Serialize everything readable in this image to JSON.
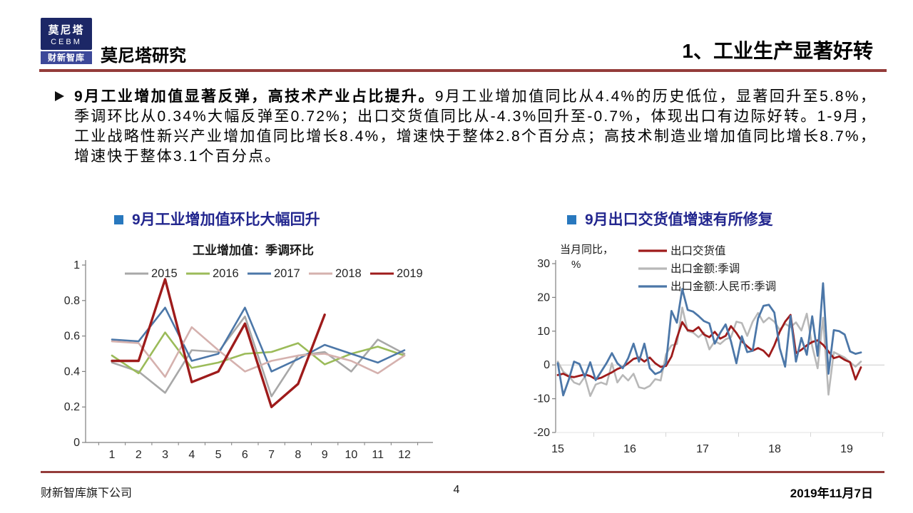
{
  "brand": {
    "logo_line1": "莫尼塔",
    "logo_line2": "CEBM",
    "logo_line3": "财新智库",
    "name": "莫尼塔研究"
  },
  "header": {
    "title": "1、工业生产显著好转",
    "rule_color": "#943c3a"
  },
  "bullet_paragraph": {
    "marker": "➢",
    "lead": "9月工业增加值显著反弹，高技术产业占比提升。",
    "body": "9月工业增加值同比从4.4%的历史低位，显著回升至5.8%，季调环比从0.34%大幅反弹至0.72%；出口交货值同比从-4.3%回升至-0.7%，体现出口有边际好转。1-9月，工业战略性新兴产业增加值同比增长8.4%，增速快于整体2.8个百分点；高技术制造业增加值同比增长8.7%，增速快于整体3.1个百分点。"
  },
  "sections": {
    "left_heading": "9月工业增加值环比大幅回升",
    "right_heading": "9月出口交货值增速有所修复",
    "bullet_color": "#2878be",
    "heading_color": "#23278f"
  },
  "chart_data": [
    {
      "type": "line",
      "title": "工业增加值：季调环比",
      "categories": [
        "1",
        "2",
        "3",
        "4",
        "5",
        "6",
        "7",
        "8",
        "9",
        "10",
        "11",
        "12"
      ],
      "ylim": [
        0,
        1
      ],
      "yticks": [
        0,
        0.2,
        0.4,
        0.6,
        0.8,
        1
      ],
      "legend_position": "top",
      "grid": false,
      "series": [
        {
          "name": "2015",
          "color": "#a8a8a8",
          "width": 2.6,
          "values": [
            0.45,
            0.4,
            0.28,
            0.52,
            0.51,
            0.71,
            0.26,
            0.49,
            0.51,
            0.4,
            0.58,
            0.5
          ]
        },
        {
          "name": "2016",
          "color": "#9bbb59",
          "width": 2.6,
          "values": [
            0.49,
            0.39,
            0.62,
            0.42,
            0.45,
            0.5,
            0.51,
            0.56,
            0.44,
            0.5,
            0.54,
            0.49
          ]
        },
        {
          "name": "2017",
          "color": "#4c77a8",
          "width": 2.6,
          "values": [
            0.58,
            0.57,
            0.76,
            0.46,
            0.5,
            0.76,
            0.4,
            0.47,
            0.55,
            0.5,
            0.45,
            0.52
          ]
        },
        {
          "name": "2018",
          "color": "#d5b1ae",
          "width": 2.6,
          "values": [
            0.57,
            0.56,
            0.37,
            0.65,
            0.52,
            0.4,
            0.46,
            0.49,
            0.5,
            0.46,
            0.39,
            0.49
          ]
        },
        {
          "name": "2019",
          "color": "#9e1b1b",
          "width": 3.4,
          "values": [
            0.46,
            0.46,
            0.92,
            0.34,
            0.4,
            0.67,
            0.2,
            0.33,
            0.72
          ]
        }
      ]
    },
    {
      "type": "line",
      "title": "",
      "ylabel": "当月同比，%",
      "x_tick_labels": [
        "15",
        "16",
        "17",
        "18",
        "19"
      ],
      "x_months": "2015-01 to 2019-09 monthly",
      "ylim": [
        -20,
        30
      ],
      "yticks": [
        30,
        20,
        10,
        0,
        -10,
        -20
      ],
      "zero_line": true,
      "legend_position": "top-right",
      "series": [
        {
          "name": "出口交货值",
          "color": "#9e1b1b",
          "width": 2.8,
          "values": [
            -3,
            -2.6,
            -3.4,
            -3.6,
            -3.2,
            -2.8,
            -3.3,
            -4.2,
            -3.8,
            -3,
            -2.2,
            -1.2,
            -0.6,
            0.5,
            1.8,
            2.2,
            1,
            2.2,
            0.5,
            -0.6,
            -0.3,
            2.5,
            8,
            12.7,
            10.3,
            10,
            11.2,
            9,
            8.2,
            9.8,
            7.8,
            8.6,
            11.5,
            9.5,
            7,
            5.5,
            4.2,
            5,
            4.2,
            2.5,
            5.8,
            9.8,
            12.8,
            14.8,
            3.5,
            4.5,
            5.8,
            6.8,
            7.3,
            6,
            4,
            2,
            2.5,
            1.5,
            0.8,
            -4.3,
            -0.7
          ]
        },
        {
          "name": "出口金额:季调",
          "color": "#b8b8b8",
          "width": 2.6,
          "values": [
            1,
            -2,
            -3.2,
            -5.2,
            -5.8,
            -3.5,
            -9.2,
            -5.8,
            -5.2,
            -5.8,
            0.5,
            -5.2,
            -3,
            -4.6,
            -2.6,
            -6.6,
            -7,
            -6.2,
            -4.2,
            -4.6,
            3.2,
            5.8,
            6.2,
            17,
            10,
            9.6,
            8.2,
            9.6,
            4.6,
            7,
            6.2,
            7.6,
            8.2,
            12.8,
            12.4,
            8.6,
            12.8,
            15.4,
            12.6,
            14,
            12.8,
            10.4,
            12.2,
            11.2,
            12.6,
            10.2,
            15.2,
            5.5,
            -1,
            14,
            -8.8,
            3.8,
            3,
            2.2,
            0.8,
            -0.5,
            1
          ]
        },
        {
          "name": "出口金额:人民币:季调",
          "color": "#4c77a8",
          "width": 2.8,
          "values": [
            0.5,
            -9,
            -4.5,
            1,
            0.3,
            -3.5,
            0.8,
            -4.5,
            -2,
            0.5,
            3.5,
            0.5,
            -1,
            2,
            6.3,
            1,
            6.3,
            -1,
            -2.7,
            -2,
            0.5,
            16,
            12.5,
            22.5,
            16.3,
            15.8,
            14.5,
            13,
            12.3,
            6.3,
            9.5,
            12,
            7,
            0.5,
            8.5,
            3.8,
            4.2,
            13.8,
            17.5,
            17.8,
            15.5,
            5,
            -0.5,
            14.5,
            1,
            8,
            3,
            14.4,
            2.7,
            24.2,
            -2.6,
            10.3,
            10,
            9,
            4,
            3.3,
            3.7
          ]
        }
      ]
    }
  ],
  "footer": {
    "left": "财新智库旗下公司",
    "page_number": "4",
    "date": "2019年11月7日"
  }
}
